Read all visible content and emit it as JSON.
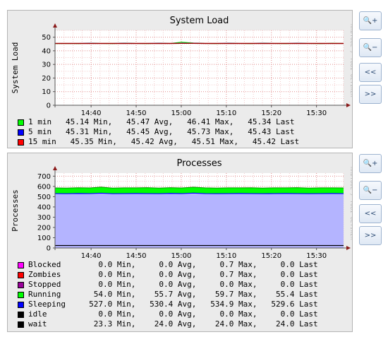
{
  "colors": {
    "canvas": "#ebebeb",
    "plot": "#ffffff",
    "grid": "#f2b8b8",
    "axis": "#555555",
    "arrow": "#8b1a1a",
    "area": "#b4b4ff",
    "sleeping": "#0000ff",
    "running": "#00c800",
    "blocked": "#ff00ff",
    "zombies": "#ff0000",
    "stopped": "#990099",
    "black": "#000000",
    "green": "#00ff00",
    "red": "#ff0000",
    "blue": "#0000ff"
  },
  "watermark": "RRDTOOL / TOBI OETIKER",
  "buttons": {
    "zoom_in": "🔍+",
    "zoom_out": "🔍−",
    "back": "<<",
    "forward": ">>"
  },
  "graph1": {
    "legend": [
      {
        "color": "#00ff00",
        "text": "1 min   45.14 Min,   45.47 Avg,   46.41 Max,   45.34 Last"
      },
      {
        "color": "#0000ff",
        "text": "5 min   45.31 Min,   45.45 Avg,   45.73 Max,   45.43 Last"
      },
      {
        "color": "#ff0000",
        "text": "15 min   45.35 Min,   45.42 Avg,   45.51 Max,   45.42 Last"
      }
    ]
  },
  "graph2": {
    "legend": [
      {
        "color": "#ff00ff",
        "text": "Blocked        0.0 Min,     0.0 Avg,     0.7 Max,     0.0 Last"
      },
      {
        "color": "#ff0000",
        "text": "Zombies        0.0 Min,     0.0 Avg,     0.7 Max,     0.0 Last"
      },
      {
        "color": "#990099",
        "text": "Stopped        0.0 Min,     0.0 Avg,     0.0 Max,     0.0 Last"
      },
      {
        "color": "#00ff00",
        "text": "Running       54.0 Min,    55.7 Avg,    59.7 Max,    55.4 Last"
      },
      {
        "color": "#0000ff",
        "text": "Sleeping     527.0 Min,   530.4 Avg,   534.9 Max,   529.6 Last"
      },
      {
        "color": "#000000",
        "text": "idle           0.0 Min,     0.0 Avg,     0.0 Max,     0.0 Last"
      },
      {
        "color": "#000000",
        "text": "wait          23.3 Min,    24.0 Avg,    24.0 Max,    24.0 Last"
      }
    ]
  },
  "chart_data": [
    {
      "type": "line",
      "title": "System Load",
      "ylabel": "System Load",
      "xlabel": "",
      "ylim": [
        0,
        55
      ],
      "yticks": [
        0,
        10,
        20,
        30,
        40,
        50
      ],
      "xticks": [
        "14:40",
        "14:50",
        "15:00",
        "15:10",
        "15:20",
        "15:30"
      ],
      "xrange": [
        "14:32",
        "15:36"
      ],
      "grid": true,
      "series": [
        {
          "name": "1 min",
          "color": "#00ff00",
          "values": [
            45.3,
            45.4,
            45.3,
            45.5,
            45.4,
            45.3,
            45.6,
            45.4,
            45.3,
            45.5,
            45.4,
            46.4,
            45.7,
            45.4,
            45.3,
            45.5,
            45.4,
            45.3,
            45.6,
            45.4,
            45.3,
            45.5,
            45.4,
            45.3,
            45.5,
            45.4
          ]
        },
        {
          "name": "5 min",
          "color": "#0000ff",
          "values": [
            45.4,
            45.4,
            45.4,
            45.5,
            45.4,
            45.4,
            45.5,
            45.4,
            45.4,
            45.5,
            45.4,
            45.7,
            45.6,
            45.4,
            45.4,
            45.5,
            45.4,
            45.4,
            45.5,
            45.4,
            45.4,
            45.5,
            45.4,
            45.4,
            45.4,
            45.4
          ]
        },
        {
          "name": "15 min",
          "color": "#ff0000",
          "values": [
            45.4,
            45.4,
            45.4,
            45.4,
            45.4,
            45.4,
            45.4,
            45.4,
            45.4,
            45.4,
            45.4,
            45.5,
            45.5,
            45.4,
            45.4,
            45.4,
            45.4,
            45.4,
            45.4,
            45.4,
            45.4,
            45.4,
            45.4,
            45.4,
            45.4,
            45.4
          ]
        }
      ]
    },
    {
      "type": "area",
      "title": "Processes",
      "ylabel": "Processes",
      "xlabel": "",
      "ylim": [
        0,
        730
      ],
      "yticks": [
        0,
        100,
        200,
        300,
        400,
        500,
        600,
        700
      ],
      "xticks": [
        "14:40",
        "14:50",
        "15:00",
        "15:10",
        "15:20",
        "15:30"
      ],
      "xrange": [
        "14:32",
        "15:36"
      ],
      "grid": true,
      "series": [
        {
          "name": "Sleeping",
          "color": "#0000ff",
          "values": [
            530,
            529,
            531,
            530,
            534,
            529,
            530,
            531,
            530,
            529,
            532,
            530,
            535,
            530,
            529,
            530,
            531,
            530,
            529,
            530,
            531,
            530,
            529,
            530,
            531,
            530
          ]
        },
        {
          "name": "Running",
          "color": "#00c800",
          "values": [
            55,
            55,
            56,
            55,
            59,
            55,
            56,
            55,
            58,
            55,
            56,
            55,
            57,
            56,
            55,
            56,
            55,
            57,
            55,
            56,
            55,
            58,
            55,
            56,
            55,
            55
          ]
        },
        {
          "name": "wait",
          "color": "#000000",
          "values": [
            24,
            24,
            24,
            24,
            24,
            24,
            24,
            24,
            24,
            24,
            24,
            24,
            24,
            24,
            24,
            24,
            24,
            24,
            24,
            24,
            24,
            24,
            24,
            24,
            24,
            24
          ]
        }
      ]
    }
  ]
}
